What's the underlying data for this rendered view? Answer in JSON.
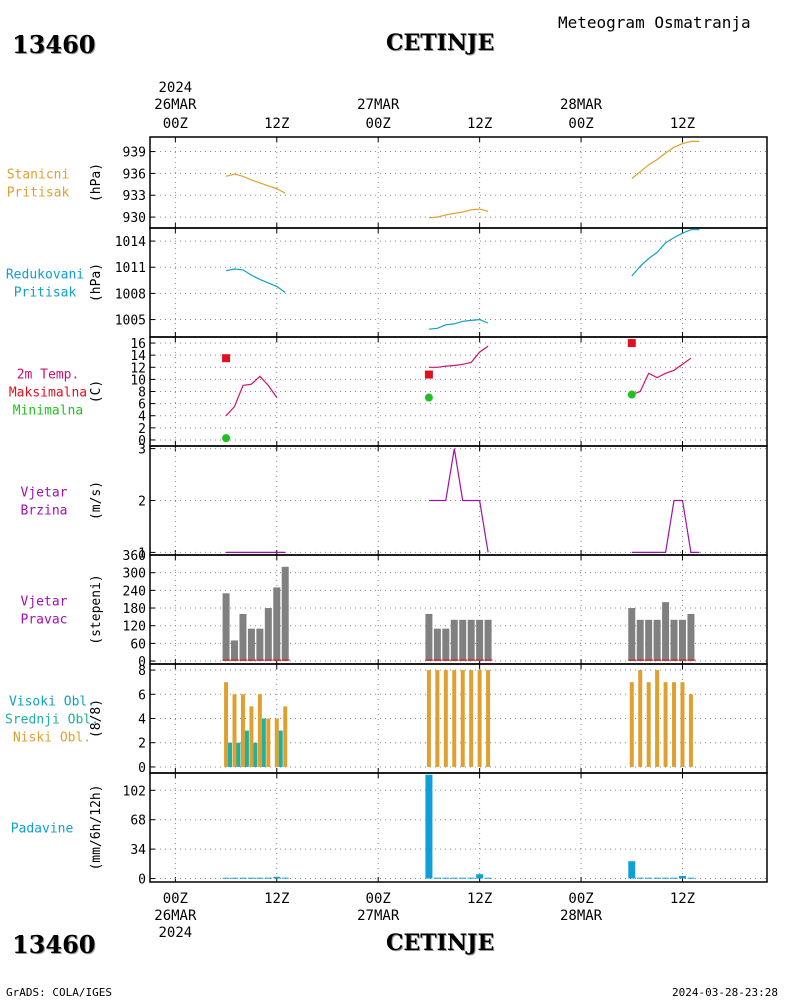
{
  "header": {
    "station_id": "13460",
    "station_name": "CETINJE",
    "title": "Meteogram Osmatranja"
  },
  "footer": {
    "station_id": "13460",
    "station_name": "CETINJE",
    "left": "GrADS: COLA/IGES",
    "right": "2024-03-28-23:28"
  },
  "colors": {
    "pressure": "#e0a030",
    "reduced": "#10a0c8",
    "tmax": "#e01020",
    "tmin": "#20c020",
    "temp": "#d01070",
    "wind": "#a010b0",
    "dir_bar": "#808080",
    "cloud_low": "#e0a030",
    "cloud_mid": "#20b0a0",
    "cloud_high": "#10a0c8",
    "precip": "#10a0d8",
    "left_label_wind": "#a010b0"
  },
  "time_axis": {
    "top_year": "2024",
    "top_labels": [
      {
        "h": 0,
        "date": "26MAR",
        "hour": "00Z"
      },
      {
        "h": 12,
        "date": "",
        "hour": "12Z"
      },
      {
        "h": 24,
        "date": "27MAR",
        "hour": "00Z"
      },
      {
        "h": 36,
        "date": "",
        "hour": "12Z"
      },
      {
        "h": 48,
        "date": "28MAR",
        "hour": "00Z"
      },
      {
        "h": 60,
        "date": "",
        "hour": "12Z"
      }
    ],
    "bottom_year": "2024",
    "bottom_labels": [
      {
        "h": 0,
        "date": "26MAR",
        "hour": "00Z"
      },
      {
        "h": 12,
        "date": "",
        "hour": "12Z"
      },
      {
        "h": 24,
        "date": "27MAR",
        "hour": "00Z"
      },
      {
        "h": 36,
        "date": "",
        "hour": "12Z"
      },
      {
        "h": 48,
        "date": "28MAR",
        "hour": "00Z"
      },
      {
        "h": 60,
        "date": "",
        "hour": "12Z"
      }
    ],
    "range_hours": [
      -3,
      70
    ]
  },
  "chart_data": [
    {
      "type": "line",
      "panel": "stanicni",
      "left_label": [
        "Stanicni",
        "Pritisak"
      ],
      "ylabel": "(hPa)",
      "ylim": [
        928.5,
        941
      ],
      "yticks": [
        930,
        933,
        936,
        939
      ],
      "series": [
        {
          "x": [
            6,
            7,
            8,
            9,
            10,
            11,
            12,
            13
          ],
          "y": [
            935.6,
            935.9,
            935.6,
            935.1,
            934.7,
            934.3,
            933.9,
            933.3
          ]
        },
        {
          "x": [
            30,
            31,
            32,
            33,
            34,
            35,
            36,
            37
          ],
          "y": [
            929.9,
            930.0,
            930.3,
            930.5,
            930.7,
            931.0,
            931.1,
            930.8
          ]
        },
        {
          "x": [
            54,
            55,
            56,
            57,
            58,
            59,
            60,
            61,
            62
          ],
          "y": [
            935.3,
            936.2,
            937.2,
            937.9,
            938.8,
            939.6,
            940.1,
            940.4,
            940.4
          ]
        }
      ]
    },
    {
      "type": "line",
      "panel": "redukovani",
      "left_label": [
        "Redukovani",
        "Pritisak"
      ],
      "ylabel": "(hPa)",
      "ylim": [
        1003,
        1015.5
      ],
      "yticks": [
        1005,
        1008,
        1011,
        1014
      ],
      "series": [
        {
          "x": [
            6,
            7,
            8,
            9,
            10,
            11,
            12,
            13
          ],
          "y": [
            1010.6,
            1010.8,
            1010.7,
            1010.1,
            1009.6,
            1009.2,
            1008.8,
            1008.1
          ]
        },
        {
          "x": [
            30,
            31,
            32,
            33,
            34,
            35,
            36,
            37
          ],
          "y": [
            1003.9,
            1004.0,
            1004.4,
            1004.5,
            1004.8,
            1004.9,
            1005.0,
            1004.6
          ]
        },
        {
          "x": [
            54,
            55,
            56,
            57,
            58,
            59,
            60,
            61,
            62
          ],
          "y": [
            1010.0,
            1011.1,
            1012.0,
            1012.7,
            1013.8,
            1014.4,
            1014.9,
            1015.3,
            1015.3
          ]
        }
      ]
    },
    {
      "type": "line",
      "panel": "temperatura",
      "left_label": [
        "2m Temp.",
        "Maksimalna",
        "Minimalna"
      ],
      "ylabel": "(C)",
      "ylim": [
        -1,
        17
      ],
      "yticks": [
        0,
        2,
        4,
        6,
        8,
        10,
        12,
        14,
        16
      ],
      "series": [
        {
          "x": [
            6,
            7,
            8,
            9,
            10,
            11,
            12,
            13
          ],
          "y": [
            4.0,
            5.5,
            9.0,
            9.2,
            10.5,
            9.0,
            7.0,
            null
          ]
        },
        {
          "x": [
            30,
            31,
            32,
            33,
            34,
            35,
            36,
            37
          ],
          "y": [
            12.0,
            12.0,
            12.2,
            12.3,
            12.5,
            12.8,
            14.5,
            15.5
          ]
        },
        {
          "x": [
            54,
            55,
            56,
            57,
            58,
            59,
            60,
            61,
            62
          ],
          "y": [
            7.5,
            8.0,
            11.0,
            10.3,
            11.0,
            11.5,
            12.5,
            13.5,
            null
          ]
        }
      ],
      "tmax_points": [
        {
          "x": 6,
          "y": 13.5
        },
        {
          "x": 30,
          "y": 10.8
        },
        {
          "x": 54,
          "y": 16.0
        }
      ],
      "tmin_points": [
        {
          "x": 6,
          "y": 0.3
        },
        {
          "x": 30,
          "y": 7.0
        },
        {
          "x": 54,
          "y": 7.5
        }
      ]
    },
    {
      "type": "line",
      "panel": "vjetar",
      "left_label": [
        "Vjetar",
        "Brzina"
      ],
      "ylabel": "(m/s)",
      "ylim": [
        0.95,
        3.05
      ],
      "yticks": [
        1,
        2,
        3
      ],
      "series": [
        {
          "x": [
            6,
            7,
            8,
            9,
            10,
            11,
            12,
            13
          ],
          "y": [
            1,
            1,
            1,
            1,
            1,
            1,
            1,
            1
          ]
        },
        {
          "x": [
            30,
            31,
            32,
            33,
            34,
            35,
            36,
            37
          ],
          "y": [
            2,
            2,
            2,
            3,
            2,
            2,
            2,
            1
          ]
        },
        {
          "x": [
            54,
            55,
            56,
            57,
            58,
            59,
            60,
            61,
            62
          ],
          "y": [
            1,
            1,
            1,
            1,
            1,
            2,
            2,
            1,
            1
          ]
        }
      ]
    },
    {
      "type": "bar",
      "panel": "pravac",
      "left_label": [
        "Vjetar",
        "Pravac"
      ],
      "ylabel": "(stepeni)",
      "ylim": [
        -10,
        360
      ],
      "yticks": [
        0,
        60,
        120,
        180,
        240,
        300,
        360
      ],
      "x": [
        6,
        7,
        8,
        9,
        10,
        11,
        12,
        13,
        30,
        31,
        32,
        33,
        34,
        35,
        36,
        37,
        54,
        55,
        56,
        57,
        58,
        59,
        60,
        61,
        62
      ],
      "values": [
        230,
        70,
        160,
        110,
        110,
        180,
        250,
        320,
        160,
        110,
        110,
        140,
        140,
        140,
        140,
        140,
        180,
        140,
        140,
        140,
        200,
        140,
        140,
        160,
        null
      ]
    },
    {
      "type": "bar",
      "panel": "oblaci",
      "left_label": [
        "Visoki Obl.",
        "Srednji Obl.",
        "Niski Obl."
      ],
      "ylabel": "(8/8)",
      "ylim": [
        -0.5,
        8.5
      ],
      "yticks": [
        0,
        2,
        4,
        6,
        8
      ],
      "x": [
        6,
        7,
        8,
        9,
        10,
        11,
        12,
        13,
        30,
        31,
        32,
        33,
        34,
        35,
        36,
        37,
        54,
        55,
        56,
        57,
        58,
        59,
        60,
        61,
        62
      ],
      "series": [
        {
          "name": "Niski Obl.",
          "values": [
            7,
            6,
            6,
            5,
            6,
            4,
            4,
            5,
            8,
            8,
            8,
            8,
            8,
            8,
            8,
            8,
            7,
            8,
            7,
            8,
            7,
            7,
            7,
            6,
            null
          ]
        },
        {
          "name": "Srednji Obl.",
          "values": [
            0,
            2,
            2,
            3,
            2,
            4,
            0,
            3,
            0,
            0,
            0,
            0,
            0,
            0,
            0,
            0,
            0,
            0,
            0,
            0,
            0,
            0,
            0,
            0,
            null
          ]
        },
        {
          "name": "Visoki Obl.",
          "values": [
            0,
            0,
            0,
            0,
            0,
            0,
            0,
            0,
            0,
            0,
            0,
            0,
            0,
            0,
            0,
            0,
            0,
            0,
            0,
            0,
            0,
            0,
            0,
            0,
            null
          ]
        }
      ]
    },
    {
      "type": "bar",
      "panel": "padavine",
      "left_label": [
        "Padavine"
      ],
      "ylabel": "(mm/6h/12h)",
      "ylim": [
        -4,
        122
      ],
      "yticks": [
        0,
        34,
        68,
        102
      ],
      "x": [
        6,
        7,
        8,
        9,
        10,
        11,
        12,
        13,
        30,
        31,
        32,
        33,
        34,
        35,
        36,
        37,
        54,
        55,
        56,
        57,
        58,
        59,
        60,
        61,
        62
      ],
      "values": [
        1,
        1,
        1,
        1,
        1,
        1,
        2,
        1,
        120,
        1,
        1,
        1,
        1,
        1,
        5,
        1,
        20,
        1,
        1,
        1,
        1,
        1,
        3,
        1,
        null
      ]
    }
  ]
}
